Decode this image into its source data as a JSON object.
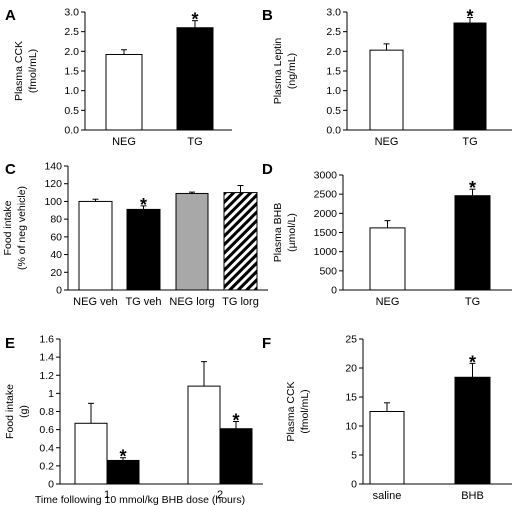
{
  "chart_data": [
    {
      "panel": "A",
      "type": "bar",
      "ylabel": [
        "Plasma CCK",
        "(fmol/mL)"
      ],
      "xlabel": "",
      "ylim": [
        0,
        3.0
      ],
      "yticks": [
        0,
        0.5,
        1.0,
        1.5,
        2.0,
        2.5,
        3.0
      ],
      "tick_labels": [
        "0.0",
        "0.5",
        "1.0",
        "1.5",
        "2.0",
        "2.5",
        "3.0"
      ],
      "categories": [
        "NEG",
        "TG"
      ],
      "series": [
        {
          "values": [
            1.92,
            2.6
          ],
          "errors": [
            0.12,
            0.18
          ],
          "fills": [
            "white",
            "black"
          ]
        }
      ],
      "significance": [
        1
      ],
      "star": "*"
    },
    {
      "panel": "B",
      "type": "bar",
      "ylabel": [
        "Plasma Leptin",
        "(ng/mL)"
      ],
      "xlabel": "",
      "ylim": [
        0,
        3.0
      ],
      "yticks": [
        0,
        0.5,
        1.0,
        1.5,
        2.0,
        2.5,
        3.0
      ],
      "tick_labels": [
        "0.0",
        "0.5",
        "1.0",
        "1.5",
        "2.0",
        "2.5",
        "3.0"
      ],
      "categories": [
        "NEG",
        "TG"
      ],
      "series": [
        {
          "values": [
            2.03,
            2.72
          ],
          "errors": [
            0.16,
            0.14
          ],
          "fills": [
            "white",
            "black"
          ]
        }
      ],
      "significance": [
        1
      ],
      "star": "*"
    },
    {
      "panel": "C",
      "type": "bar",
      "ylabel": [
        "Food intake",
        "(% of neg vehicle)"
      ],
      "xlabel": "",
      "ylim": [
        0,
        140
      ],
      "yticks": [
        0,
        20,
        40,
        60,
        80,
        100,
        120,
        140
      ],
      "tick_labels": [
        "0",
        "20",
        "40",
        "60",
        "80",
        "100",
        "120",
        "140"
      ],
      "categories": [
        "NEG veh",
        "TG veh",
        "NEG lorg",
        "TG lorg"
      ],
      "series": [
        {
          "values": [
            100,
            91,
            109,
            110
          ],
          "errors": [
            2.5,
            4,
            1.5,
            8
          ],
          "fills": [
            "white",
            "black",
            "gray",
            "hatch"
          ]
        }
      ],
      "significance": [
        1
      ],
      "star": "*"
    },
    {
      "panel": "D",
      "type": "bar",
      "ylabel": [
        "Plasma BHB",
        "(µmol/L)"
      ],
      "xlabel": "",
      "ylim": [
        0,
        3000
      ],
      "yticks": [
        0,
        500,
        1000,
        1500,
        2000,
        2500,
        3000
      ],
      "tick_labels": [
        "0",
        "500",
        "1000",
        "1500",
        "2000",
        "2500",
        "3000"
      ],
      "categories": [
        "NEG",
        "TG"
      ],
      "series": [
        {
          "values": [
            1620,
            2460
          ],
          "errors": [
            190,
            170
          ],
          "fills": [
            "white",
            "black"
          ]
        }
      ],
      "significance": [
        1
      ],
      "star": "*"
    },
    {
      "panel": "E",
      "type": "bar",
      "ylabel": [
        "Food intake",
        "(g)"
      ],
      "xlabel": "Time following 10 mmol/kg BHB dose (hours)",
      "ylim": [
        0,
        1.6
      ],
      "yticks": [
        0,
        0.2,
        0.4,
        0.6,
        0.8,
        1.0,
        1.2,
        1.4,
        1.6
      ],
      "tick_labels": [
        "0",
        "0.2",
        "0.4",
        "0.6",
        "0.8",
        "1",
        "1.2",
        "1.4",
        "1.6"
      ],
      "categories": [
        "1",
        "2"
      ],
      "series": [
        {
          "values": [
            0.67,
            1.08
          ],
          "errors": [
            0.22,
            0.27
          ],
          "fill": "white"
        },
        {
          "values": [
            0.26,
            0.61
          ],
          "errors": [
            0.03,
            0.08
          ],
          "fill": "black"
        }
      ],
      "significance_series": 1,
      "star": "*"
    },
    {
      "panel": "F",
      "type": "bar",
      "ylabel": [
        "Plasma CCK",
        "(fmol/mL)"
      ],
      "xlabel": "",
      "ylim": [
        0,
        25
      ],
      "yticks": [
        0,
        5,
        10,
        15,
        20,
        25
      ],
      "tick_labels": [
        "0",
        "5",
        "10",
        "15",
        "20",
        "25"
      ],
      "categories": [
        "saline",
        "BHB"
      ],
      "series": [
        {
          "values": [
            12.5,
            18.4
          ],
          "errors": [
            1.5,
            2.4
          ],
          "fills": [
            "white",
            "black"
          ]
        }
      ],
      "significance": [
        1
      ],
      "star": "*"
    }
  ]
}
